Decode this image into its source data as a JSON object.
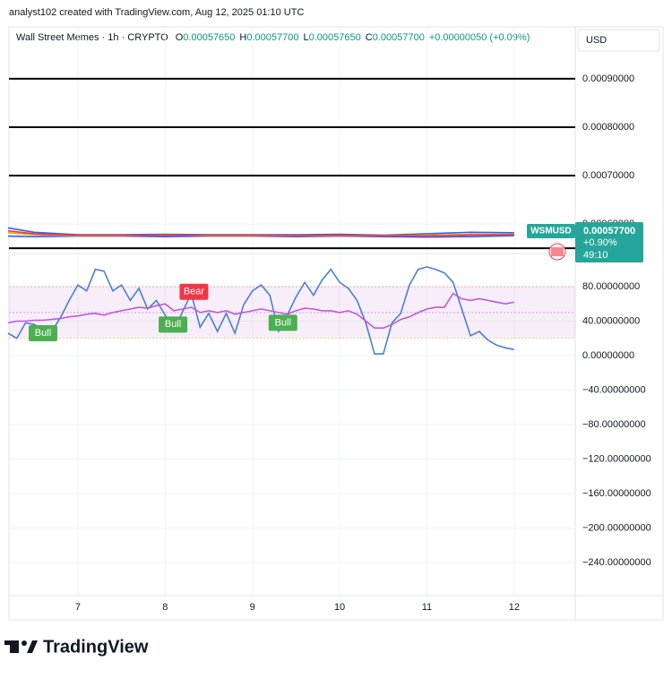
{
  "header": {
    "credit": "analyst102 created with TradingView.com, Aug 12, 2025 01:10 UTC",
    "currency": "USD",
    "brand": "TradingView"
  },
  "legend": {
    "symbol": "Wall Street Memes · 1h · CRYPTO",
    "ohlc": [
      {
        "key": "O",
        "value": "0.00057650"
      },
      {
        "key": "H",
        "value": "0.00057700"
      },
      {
        "key": "L",
        "value": "0.00057650"
      },
      {
        "key": "C",
        "value": "0.00057700"
      }
    ],
    "change": "+0.00000050 (+0.09%)"
  },
  "price_label": {
    "ticker": "WSMUSD",
    "price": "0.00057700",
    "change": "+0.90%",
    "countdown": "49:10"
  },
  "chart_data": [
    {
      "type": "line",
      "xlim": [
        6.21,
        12.7
      ],
      "ylim": [
        0.001007,
        0.000541
      ],
      "yticks": [
        {
          "value": 0.0009,
          "label": "0.00090000"
        },
        {
          "value": 0.0008,
          "label": "0.00080000"
        },
        {
          "value": 0.0007,
          "label": "0.00070000"
        },
        {
          "value": 0.0006,
          "label": "0.00060000"
        }
      ],
      "hlines": [
        0.0009,
        0.0008,
        0.0007,
        0.00055
      ],
      "hline_color": "#000000",
      "x": [
        6.2,
        6.5,
        7,
        7.5,
        8,
        8.5,
        9,
        9.5,
        10,
        10.5,
        11,
        11.5,
        12
      ],
      "series": [
        {
          "color": "#2962ff",
          "values": [
            0.000592,
            0.000583,
            0.000578,
            0.000578,
            0.000579,
            0.000578,
            0.000578,
            0.000578,
            0.000579,
            0.000577,
            0.00058,
            0.000583,
            0.000582
          ]
        },
        {
          "color": "#2962ff",
          "values": [
            0.000575,
            0.000574,
            0.000575,
            0.000575,
            0.000574,
            0.000575,
            0.000575,
            0.000574,
            0.000575,
            0.000574,
            0.000573,
            0.000574,
            0.000576
          ]
        },
        {
          "color": "#ff9800",
          "values": [
            0.000582,
            0.000578,
            0.000576,
            0.000576,
            0.000577,
            0.000576,
            0.000576,
            0.000576,
            0.000576,
            0.000576,
            0.000577,
            0.000579,
            0.000579
          ]
        },
        {
          "color": "#f23645",
          "values": [
            0.000586,
            0.00058,
            0.000577,
            0.000577,
            0.000576,
            0.000577,
            0.000577,
            0.000576,
            0.000577,
            0.000576,
            0.000575,
            0.000577,
            0.000578
          ]
        }
      ]
    },
    {
      "type": "line",
      "xlim": [
        6.21,
        12.7
      ],
      "ylim": [
        117.4,
        -278.5
      ],
      "xticks": [
        7,
        8,
        9,
        10,
        11,
        12
      ],
      "yticks": [
        {
          "value": 80,
          "label": "80.00000000"
        },
        {
          "value": 40,
          "label": "40.00000000"
        },
        {
          "value": 0,
          "label": "0.00000000"
        },
        {
          "value": -40,
          "label": "−40.00000000"
        },
        {
          "value": -80,
          "label": "−80.00000000"
        },
        {
          "value": -120,
          "label": "−120.00000000"
        },
        {
          "value": -160,
          "label": "−160.00000000"
        },
        {
          "value": -200,
          "label": "−200.00000000"
        },
        {
          "value": -240,
          "label": "−240.00000000"
        }
      ],
      "band": [
        20,
        80
      ],
      "midline": 50,
      "band_color": "#9c27b0",
      "x": [
        6.2,
        6.3,
        6.4,
        6.5,
        6.6,
        6.7,
        6.8,
        6.9,
        7,
        7.1,
        7.2,
        7.3,
        7.4,
        7.5,
        7.6,
        7.7,
        7.8,
        7.9,
        8,
        8.1,
        8.2,
        8.3,
        8.4,
        8.5,
        8.6,
        8.7,
        8.8,
        8.9,
        9,
        9.1,
        9.2,
        9.3,
        9.4,
        9.5,
        9.6,
        9.7,
        9.8,
        9.9,
        10,
        10.1,
        10.2,
        10.3,
        10.4,
        10.5,
        10.6,
        10.7,
        10.8,
        10.9,
        11,
        11.1,
        11.2,
        11.3,
        11.4,
        11.5,
        11.6,
        11.7,
        11.8,
        11.9,
        12
      ],
      "series": [
        {
          "color": "#4a7fd4",
          "values": [
            26,
            20,
            38,
            36,
            30,
            28,
            44,
            64,
            82,
            75,
            100,
            98,
            75,
            82,
            64,
            78,
            54,
            64,
            47,
            30,
            51,
            72,
            33,
            49,
            28,
            49,
            26,
            59,
            75,
            82,
            70,
            28,
            47,
            68,
            85,
            70,
            88,
            100,
            85,
            78,
            64,
            38,
            2,
            2,
            38,
            49,
            82,
            100,
            103,
            100,
            96,
            85,
            54,
            23,
            28,
            18,
            12,
            9,
            7
          ]
        },
        {
          "color": "#c158dc",
          "values": [
            38,
            40,
            40,
            41,
            41,
            42,
            43,
            45,
            46,
            48,
            49,
            47,
            50,
            52,
            54,
            56,
            55,
            58,
            60,
            52,
            54,
            56,
            50,
            52,
            50,
            52,
            48,
            50,
            52,
            54,
            52,
            50,
            48,
            52,
            55,
            54,
            52,
            52,
            50,
            52,
            48,
            40,
            32,
            32,
            36,
            42,
            45,
            50,
            54,
            56,
            56,
            72,
            66,
            64,
            66,
            64,
            62,
            60,
            62
          ]
        }
      ],
      "annotations": [
        {
          "text": "Bull",
          "x": 6.6,
          "y": 26,
          "color": "#4caf50"
        },
        {
          "text": "Bull",
          "x": 8.09,
          "y": 36,
          "color": "#4caf50"
        },
        {
          "text": "Bear",
          "x": 8.33,
          "y": 74,
          "color": "#f23645"
        },
        {
          "text": "Bull",
          "x": 9.35,
          "y": 38,
          "color": "#4caf50"
        }
      ]
    }
  ]
}
